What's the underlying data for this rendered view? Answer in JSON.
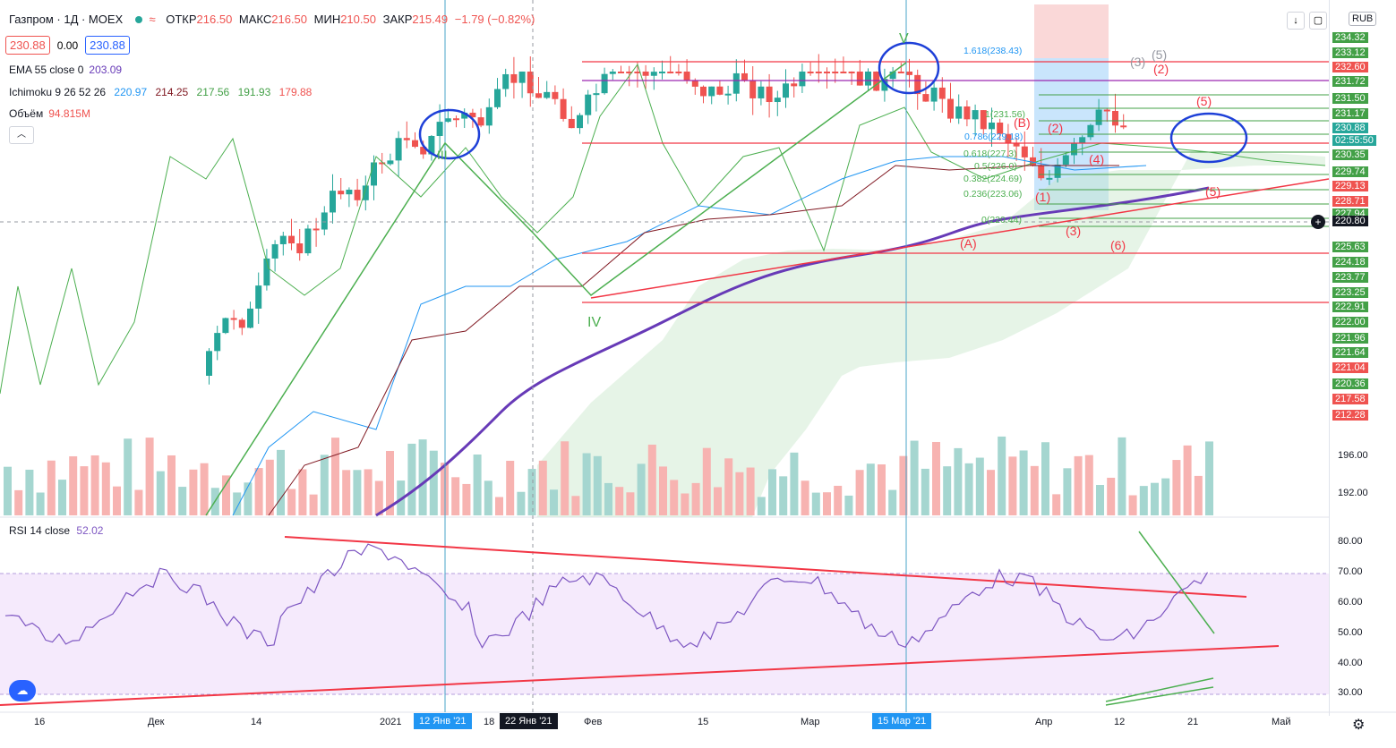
{
  "header": {
    "symbol": "Газпром · 1Д · MOEX",
    "open_label": "ОТКР",
    "open": "216.50",
    "high_label": "МАКС",
    "high": "216.50",
    "low_label": "МИН",
    "low": "210.50",
    "close_label": "ЗАКР",
    "close": "215.49",
    "change": "−1.79 (−0.82%)",
    "sell_price": "230.88",
    "spread": "0.00",
    "buy_price": "230.88"
  },
  "indicators": {
    "ema_name": "EMA 55 close 0",
    "ema_value": "203.09",
    "ichimoku_name": "Ichimoku 9 26 52 26",
    "ichimoku_values": [
      "220.97",
      "214.25",
      "217.56",
      "191.93",
      "179.88"
    ],
    "volume_name": "Объём",
    "volume_value": "94.815M",
    "rsi_name": "RSI 14 close",
    "rsi_value": "52.02"
  },
  "currency": "RUB",
  "price_axis": [
    "234.32",
    "233.12",
    "232.60",
    "231.72",
    "231.50",
    "231.17",
    "230.35",
    "229.74",
    "229.13",
    "228.71",
    "227.94",
    "225.63",
    "224.18",
    "223.77",
    "223.25",
    "222.91",
    "222.00",
    "221.96",
    "221.64",
    "221.04",
    "220.36",
    "217.58",
    "212.28",
    "196.00",
    "192.00"
  ],
  "price_markers": {
    "last_price": "230.88",
    "countdown": "02:55:50",
    "crosshair_price": "220.80"
  },
  "rsi_axis": [
    "80.00",
    "70.00",
    "60.00",
    "50.00",
    "40.00",
    "30.00"
  ],
  "time_axis": [
    "16",
    "Дек",
    "14",
    "2021",
    "18",
    "Фев",
    "15",
    "Мар",
    "Апр",
    "12",
    "21",
    "Май"
  ],
  "time_highlights": [
    "12 Янв '21",
    "22 Янв '21",
    "15 Мар '21"
  ],
  "fib_levels": [
    "1.618(238.43)",
    "1(231.56)",
    "0.786(229.18)",
    "0.618(227.3)",
    "0.5(226.0)",
    "0.382(224.69)",
    "0.236(223.06)",
    "0(220.44)"
  ],
  "wave_labels": {
    "major": [
      "III",
      "IV",
      "V"
    ],
    "minor": [
      "(A)",
      "(B)",
      "(1)",
      "(2)",
      "(3)",
      "(4)",
      "(5)",
      "(6)"
    ],
    "top_group": [
      "(3)",
      "(5)"
    ]
  },
  "colors": {
    "up": "#26a69a",
    "down": "#ef5350",
    "ema": "#673ab7",
    "rsi": "#7e57c2",
    "trendline_red": "#f23645",
    "trendline_green": "#4caf50",
    "annotation": "#1e40d8"
  }
}
